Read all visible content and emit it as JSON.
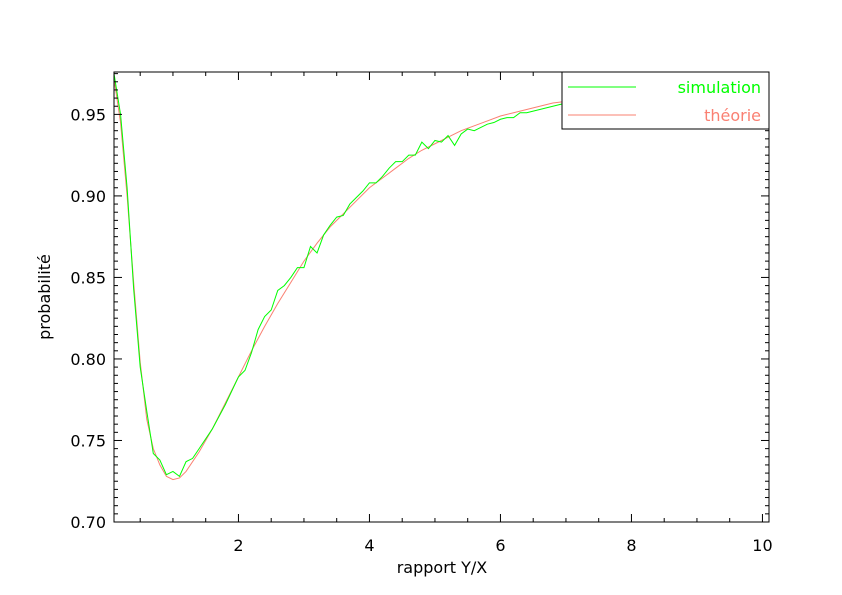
{
  "chart_data": {
    "type": "line",
    "xlabel": "rapport Y/X",
    "ylabel": "probabilité",
    "xlim": [
      0.1,
      10.1
    ],
    "ylim": [
      0.7,
      0.976
    ],
    "x_ticks": [
      2,
      4,
      6,
      8,
      10
    ],
    "x_tick_labels": [
      "2",
      "4",
      "6",
      "8",
      "10"
    ],
    "y_ticks": [
      0.7,
      0.75,
      0.8,
      0.85,
      0.9,
      0.95
    ],
    "y_tick_labels": [
      "0.70",
      "0.75",
      "0.80",
      "0.85",
      "0.90",
      "0.95"
    ],
    "grid": false,
    "legend": {
      "position": "top-right"
    },
    "series": [
      {
        "name": "simulation",
        "color": "#00ff00",
        "points": [
          [
            0.1,
            0.975
          ],
          [
            0.2,
            0.95
          ],
          [
            0.3,
            0.905
          ],
          [
            0.4,
            0.843
          ],
          [
            0.5,
            0.795
          ],
          [
            0.6,
            0.768
          ],
          [
            0.7,
            0.742
          ],
          [
            0.8,
            0.738
          ],
          [
            0.9,
            0.729
          ],
          [
            1.0,
            0.731
          ],
          [
            1.1,
            0.728
          ],
          [
            1.2,
            0.737
          ],
          [
            1.3,
            0.739
          ],
          [
            1.4,
            0.745
          ],
          [
            1.6,
            0.757
          ],
          [
            1.8,
            0.772
          ],
          [
            2.0,
            0.789
          ],
          [
            2.1,
            0.793
          ],
          [
            2.2,
            0.804
          ],
          [
            2.3,
            0.818
          ],
          [
            2.4,
            0.826
          ],
          [
            2.5,
            0.83
          ],
          [
            2.6,
            0.842
          ],
          [
            2.7,
            0.845
          ],
          [
            2.8,
            0.85
          ],
          [
            2.9,
            0.856
          ],
          [
            3.0,
            0.856
          ],
          [
            3.1,
            0.869
          ],
          [
            3.2,
            0.865
          ],
          [
            3.3,
            0.876
          ],
          [
            3.4,
            0.882
          ],
          [
            3.5,
            0.887
          ],
          [
            3.6,
            0.888
          ],
          [
            3.7,
            0.895
          ],
          [
            3.8,
            0.899
          ],
          [
            3.9,
            0.903
          ],
          [
            4.0,
            0.908
          ],
          [
            4.1,
            0.908
          ],
          [
            4.2,
            0.912
          ],
          [
            4.3,
            0.917
          ],
          [
            4.4,
            0.921
          ],
          [
            4.5,
            0.921
          ],
          [
            4.6,
            0.925
          ],
          [
            4.7,
            0.925
          ],
          [
            4.8,
            0.933
          ],
          [
            4.9,
            0.929
          ],
          [
            5.0,
            0.934
          ],
          [
            5.1,
            0.933
          ],
          [
            5.2,
            0.937
          ],
          [
            5.3,
            0.931
          ],
          [
            5.4,
            0.938
          ],
          [
            5.5,
            0.941
          ],
          [
            5.6,
            0.94
          ],
          [
            5.7,
            0.942
          ],
          [
            5.8,
            0.944
          ],
          [
            5.9,
            0.945
          ],
          [
            6.0,
            0.947
          ],
          [
            6.1,
            0.948
          ],
          [
            6.2,
            0.948
          ],
          [
            6.3,
            0.951
          ],
          [
            6.4,
            0.951
          ],
          [
            6.5,
            0.952
          ],
          [
            6.6,
            0.953
          ],
          [
            6.7,
            0.954
          ],
          [
            6.8,
            0.955
          ],
          [
            6.9,
            0.956
          ],
          [
            7.0,
            0.957
          ]
        ]
      },
      {
        "name": "théorie",
        "color": "#fa8072",
        "points": [
          [
            0.1,
            0.972
          ],
          [
            0.2,
            0.945
          ],
          [
            0.3,
            0.9
          ],
          [
            0.4,
            0.847
          ],
          [
            0.5,
            0.798
          ],
          [
            0.6,
            0.763
          ],
          [
            0.7,
            0.745
          ],
          [
            0.8,
            0.735
          ],
          [
            0.9,
            0.728
          ],
          [
            1.0,
            0.726
          ],
          [
            1.1,
            0.727
          ],
          [
            1.2,
            0.731
          ],
          [
            1.4,
            0.743
          ],
          [
            1.6,
            0.757
          ],
          [
            1.8,
            0.773
          ],
          [
            2.0,
            0.789
          ],
          [
            2.2,
            0.805
          ],
          [
            2.4,
            0.82
          ],
          [
            2.6,
            0.834
          ],
          [
            2.8,
            0.847
          ],
          [
            3.0,
            0.86
          ],
          [
            3.2,
            0.871
          ],
          [
            3.4,
            0.881
          ],
          [
            3.6,
            0.889
          ],
          [
            3.8,
            0.897
          ],
          [
            4.0,
            0.905
          ],
          [
            4.2,
            0.911
          ],
          [
            4.4,
            0.917
          ],
          [
            4.6,
            0.923
          ],
          [
            4.8,
            0.928
          ],
          [
            5.0,
            0.932
          ],
          [
            5.2,
            0.936
          ],
          [
            5.4,
            0.94
          ],
          [
            5.6,
            0.943
          ],
          [
            5.8,
            0.946
          ],
          [
            6.0,
            0.949
          ],
          [
            6.2,
            0.951
          ],
          [
            6.4,
            0.953
          ],
          [
            6.6,
            0.955
          ],
          [
            6.8,
            0.957
          ],
          [
            7.0,
            0.958
          ],
          [
            7.2,
            0.959
          ]
        ]
      }
    ]
  }
}
